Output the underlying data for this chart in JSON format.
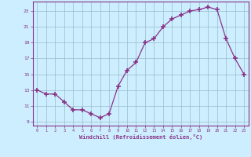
{
  "hours": [
    0,
    1,
    2,
    3,
    4,
    5,
    6,
    7,
    8,
    9,
    10,
    11,
    12,
    13,
    14,
    15,
    16,
    17,
    18,
    19,
    20,
    21,
    22,
    23
  ],
  "values": [
    13,
    12.5,
    12.5,
    11.5,
    10.5,
    10.5,
    10,
    9.5,
    10,
    13.5,
    15.5,
    16.5,
    19,
    19.5,
    21,
    22,
    22.5,
    23,
    23.2,
    23.5,
    23.2,
    19.5,
    17,
    15
  ],
  "line_color": "#883388",
  "marker": "+",
  "marker_size": 4,
  "bg_color": "#cceeff",
  "grid_color": "#99bbcc",
  "xlabel": "Windchill (Refroidissement éolien,°C)",
  "ylim": [
    8.5,
    24.2
  ],
  "xlim": [
    -0.5,
    23.5
  ],
  "yticks": [
    9,
    11,
    13,
    15,
    17,
    19,
    21,
    23
  ],
  "xticks": [
    0,
    1,
    2,
    3,
    4,
    5,
    6,
    7,
    8,
    9,
    10,
    11,
    12,
    13,
    14,
    15,
    16,
    17,
    18,
    19,
    20,
    21,
    22,
    23
  ],
  "label_color": "#883388",
  "tick_color": "#883388",
  "spine_color": "#883388"
}
